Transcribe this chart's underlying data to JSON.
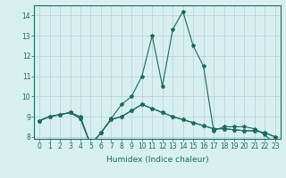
{
  "x": [
    0,
    1,
    2,
    3,
    4,
    5,
    6,
    7,
    8,
    9,
    10,
    11,
    12,
    13,
    14,
    15,
    16,
    17,
    18,
    19,
    20,
    21,
    22,
    23
  ],
  "line1": [
    8.8,
    9.0,
    9.1,
    9.2,
    9.0,
    7.6,
    8.2,
    8.9,
    9.6,
    10.0,
    11.0,
    13.0,
    10.5,
    13.3,
    14.2,
    12.5,
    11.5,
    8.3,
    8.5,
    8.5,
    8.5,
    8.4,
    8.1,
    7.6
  ],
  "line2": [
    8.8,
    9.0,
    9.1,
    9.2,
    8.9,
    7.6,
    8.2,
    8.85,
    9.0,
    9.3,
    9.6,
    9.4,
    9.2,
    9.0,
    8.85,
    8.7,
    8.55,
    8.4,
    8.4,
    8.35,
    8.3,
    8.3,
    8.2,
    8.0
  ],
  "line3": [
    8.8,
    9.0,
    9.1,
    9.2,
    8.9,
    7.6,
    8.2,
    8.85,
    9.0,
    9.3,
    9.6,
    9.4,
    9.2,
    9.0,
    8.85,
    8.7,
    8.55,
    8.4,
    8.4,
    8.35,
    8.3,
    8.3,
    8.2,
    8.0
  ],
  "color": "#1a6b5a",
  "bg_color": "#d8eff0",
  "grid_color": "#b0cfd8",
  "xlabel": "Humidex (Indice chaleur)",
  "ylim": [
    7.9,
    14.5
  ],
  "xlim": [
    -0.5,
    23.5
  ],
  "yticks": [
    8,
    9,
    10,
    11,
    12,
    13,
    14
  ],
  "xticks": [
    0,
    1,
    2,
    3,
    4,
    5,
    6,
    7,
    8,
    9,
    10,
    11,
    12,
    13,
    14,
    15,
    16,
    17,
    18,
    19,
    20,
    21,
    22,
    23
  ],
  "xtick_labels": [
    "0",
    "1",
    "2",
    "3",
    "4",
    "5",
    "6",
    "7",
    "8",
    "9",
    "10",
    "11",
    "12",
    "13",
    "14",
    "15",
    "16",
    "17",
    "18",
    "19",
    "20",
    "21",
    "22",
    "23"
  ],
  "marker": "*",
  "markersize": 3.0,
  "linewidth": 0.8,
  "tick_fontsize": 5.5,
  "label_fontsize": 6.5
}
